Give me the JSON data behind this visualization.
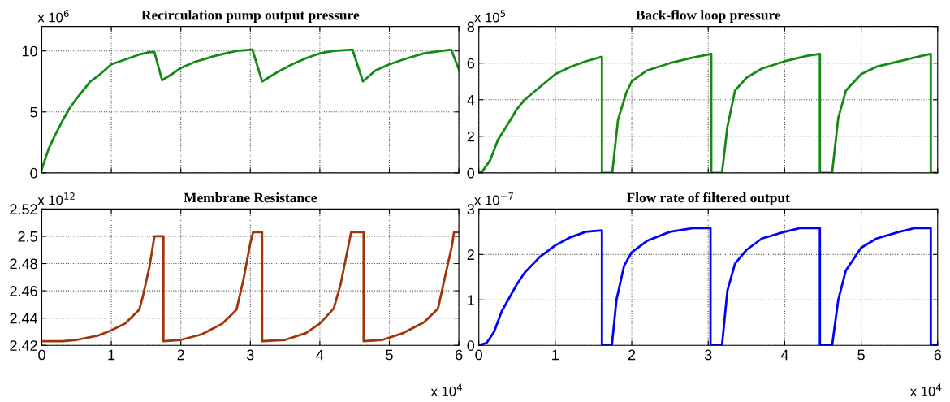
{
  "chart_data": [
    {
      "type": "line",
      "title": "Recirculation pump output pressure",
      "annotations": [
        "x 10$^{6}$"
      ],
      "xlim": [
        0,
        6
      ],
      "xticks": [
        0,
        1,
        2,
        3,
        4,
        5,
        6
      ],
      "ylim": [
        0,
        12
      ],
      "yticks": [
        0,
        5,
        10
      ],
      "tick_labels": "y",
      "grid": true,
      "series": [
        {
          "color": "#138a13",
          "x": [
            0,
            0.1,
            0.2,
            0.3,
            0.4,
            0.5,
            0.6,
            0.7,
            0.8,
            0.9,
            1.0,
            1.2,
            1.4,
            1.55,
            1.62,
            1.73,
            1.9,
            2.0,
            2.2,
            2.5,
            2.8,
            3.03,
            3.17,
            3.4,
            3.6,
            3.8,
            4.0,
            4.2,
            4.47,
            4.62,
            4.8,
            5.0,
            5.2,
            5.5,
            5.75,
            5.89,
            6.0
          ],
          "values": [
            0.3,
            2,
            3.2,
            4.3,
            5.3,
            6.1,
            6.8,
            7.5,
            7.9,
            8.4,
            8.9,
            9.3,
            9.7,
            9.9,
            9.9,
            7.6,
            8.2,
            8.6,
            9.1,
            9.6,
            10.0,
            10.1,
            7.5,
            8.3,
            8.9,
            9.4,
            9.8,
            10.0,
            10.1,
            7.5,
            8.4,
            8.9,
            9.3,
            9.8,
            10.0,
            10.1,
            8.5
          ]
        }
      ]
    },
    {
      "type": "line",
      "title": "Back-flow loop pressure",
      "annotations": [
        "x 10$^{5}$"
      ],
      "xlim": [
        0,
        6
      ],
      "xticks": [
        0,
        1,
        2,
        3,
        4,
        5,
        6
      ],
      "ylim": [
        0,
        8
      ],
      "yticks": [
        0,
        2,
        4,
        6,
        8
      ],
      "tick_labels": "y",
      "grid": true,
      "series": [
        {
          "color": "#138a13",
          "x": [
            0,
            0.05,
            0.15,
            0.25,
            0.4,
            0.5,
            0.6,
            0.8,
            1.0,
            1.2,
            1.4,
            1.61,
            1.61,
            1.745,
            1.82,
            1.93,
            2.0,
            2.2,
            2.5,
            2.8,
            3.04,
            3.04,
            3.18,
            3.25,
            3.35,
            3.5,
            3.7,
            4.0,
            4.3,
            4.46,
            4.46,
            4.62,
            4.7,
            4.8,
            5.0,
            5.2,
            5.5,
            5.8,
            5.91,
            5.91,
            6.0
          ],
          "values": [
            0,
            0.1,
            0.7,
            1.8,
            2.8,
            3.5,
            4.0,
            4.7,
            5.4,
            5.8,
            6.1,
            6.35,
            0,
            0,
            2.9,
            4.4,
            5.0,
            5.6,
            6.0,
            6.3,
            6.5,
            0,
            0,
            2.5,
            4.5,
            5.2,
            5.7,
            6.1,
            6.4,
            6.5,
            0,
            0,
            3.0,
            4.5,
            5.4,
            5.8,
            6.1,
            6.4,
            6.5,
            0,
            0
          ]
        }
      ]
    },
    {
      "type": "line",
      "title": "Membrane Resistance",
      "annotations": [
        "x 10$^{12}$",
        "x 10$^{4}$"
      ],
      "xlim": [
        0,
        6
      ],
      "xticks": [
        0,
        1,
        2,
        3,
        4,
        5,
        6
      ],
      "ylim": [
        2.42,
        2.52
      ],
      "yticks": [
        2.42,
        2.44,
        2.46,
        2.48,
        2.5,
        2.52
      ],
      "grid": true,
      "series": [
        {
          "color": "#a0350a",
          "x": [
            0,
            0.3,
            0.5,
            0.8,
            1.0,
            1.2,
            1.4,
            1.45,
            1.55,
            1.62,
            1.75,
            1.75,
            2.0,
            2.3,
            2.6,
            2.8,
            2.9,
            3.0,
            3.04,
            3.17,
            3.17,
            3.5,
            3.8,
            4.0,
            4.2,
            4.3,
            4.45,
            4.63,
            4.63,
            4.9,
            5.2,
            5.5,
            5.7,
            5.8,
            5.9,
            5.93,
            6.0
          ],
          "values": [
            2.423,
            2.423,
            2.424,
            2.427,
            2.431,
            2.436,
            2.446,
            2.455,
            2.478,
            2.5,
            2.5,
            2.423,
            2.424,
            2.428,
            2.436,
            2.446,
            2.468,
            2.495,
            2.503,
            2.503,
            2.423,
            2.424,
            2.429,
            2.436,
            2.447,
            2.465,
            2.503,
            2.503,
            2.423,
            2.424,
            2.429,
            2.437,
            2.447,
            2.47,
            2.493,
            2.503,
            2.503
          ]
        }
      ]
    },
    {
      "type": "line",
      "title": "Flow rate of filtered output",
      "annotations": [
        "x 10$^{−7}$",
        "x 10$^{4}$"
      ],
      "xlim": [
        0,
        6
      ],
      "xticks": [
        0,
        1,
        2,
        3,
        4,
        5,
        6
      ],
      "ylim": [
        0,
        3
      ],
      "yticks": [
        0,
        1,
        2,
        3
      ],
      "grid": true,
      "series": [
        {
          "color": "#0000ff",
          "x": [
            0,
            0.1,
            0.2,
            0.3,
            0.4,
            0.5,
            0.6,
            0.8,
            1.0,
            1.2,
            1.4,
            1.61,
            1.61,
            1.74,
            1.8,
            1.9,
            2.0,
            2.2,
            2.5,
            2.8,
            3.03,
            3.03,
            3.18,
            3.25,
            3.35,
            3.5,
            3.7,
            4.0,
            4.2,
            4.46,
            4.46,
            4.62,
            4.7,
            4.8,
            5.0,
            5.2,
            5.5,
            5.7,
            5.91,
            5.91,
            6.0
          ],
          "values": [
            0,
            0.05,
            0.3,
            0.75,
            1.05,
            1.35,
            1.6,
            1.95,
            2.2,
            2.38,
            2.5,
            2.53,
            0,
            0,
            1.0,
            1.75,
            2.05,
            2.3,
            2.5,
            2.58,
            2.58,
            0,
            0,
            1.2,
            1.8,
            2.1,
            2.35,
            2.5,
            2.58,
            2.58,
            0,
            0,
            1.0,
            1.65,
            2.15,
            2.35,
            2.5,
            2.58,
            2.58,
            0,
            0
          ]
        }
      ]
    }
  ]
}
